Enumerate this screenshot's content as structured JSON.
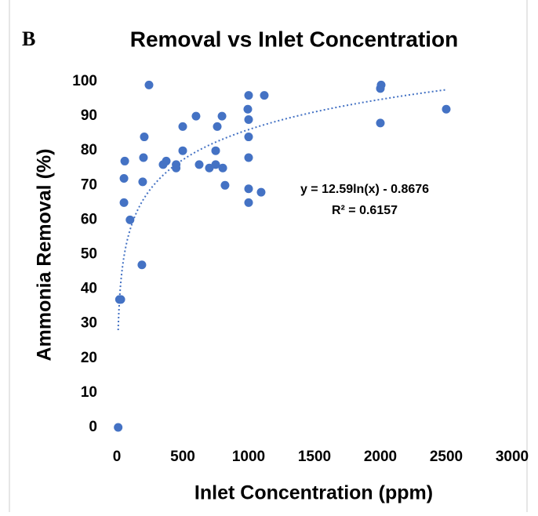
{
  "chart_data": {
    "type": "scatter",
    "panel_label": "B",
    "title": "Removal vs Inlet Concentration",
    "x_label": "Inlet Concentration (ppm)",
    "y_label": "Ammonia Removal (%)",
    "color": "#4472c4",
    "x": [
      10,
      20,
      30,
      244,
      60,
      54,
      54,
      100,
      190,
      208,
      202,
      196,
      351,
      375,
      450,
      450,
      500,
      500,
      601,
      625,
      702,
      750,
      750,
      762,
      798,
      804,
      821,
      994,
      1000,
      1000,
      1000,
      1000,
      1000,
      1000,
      1095,
      1119,
      2006,
      2000,
      2000,
      2500
    ],
    "values": [
      0,
      37,
      37,
      99,
      77,
      72,
      65,
      60,
      47,
      84,
      78,
      71,
      76,
      77,
      75,
      76,
      87,
      80,
      90,
      76,
      75,
      80,
      76,
      87,
      90,
      75,
      70,
      92,
      96,
      89,
      84,
      78,
      69,
      65,
      68,
      96,
      99,
      98,
      88,
      92
    ],
    "xlim": [
      0,
      3000
    ],
    "xticks": [
      0,
      500,
      1000,
      1500,
      2000,
      2500,
      3000
    ],
    "ylim": [
      0,
      100
    ],
    "yticks": [
      0,
      10,
      20,
      30,
      40,
      50,
      60,
      70,
      80,
      90,
      100
    ],
    "trendline": {
      "type": "log",
      "equation": "y = 12.59ln(x) - 0.8676",
      "r_squared": "R² = 0.6157",
      "color": "#4472c4"
    }
  }
}
